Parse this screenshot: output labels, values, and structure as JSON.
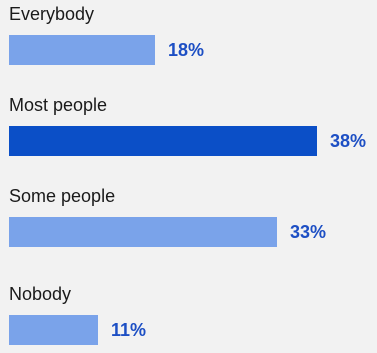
{
  "chart_data": {
    "type": "bar",
    "orientation": "horizontal",
    "categories": [
      "Everybody",
      "Most people",
      "Some people",
      "Nobody"
    ],
    "values": [
      18,
      38,
      33,
      11
    ],
    "value_labels": [
      "18%",
      "38%",
      "33%",
      "11%"
    ],
    "unit": "%",
    "highlight_index": 1,
    "colors": {
      "bar": "#7aa3ea",
      "bar_highlight": "#0b4fc7",
      "value_text": "#1d4fc4",
      "label_text": "#1a1a1a",
      "background": "#f2f2f2"
    }
  }
}
